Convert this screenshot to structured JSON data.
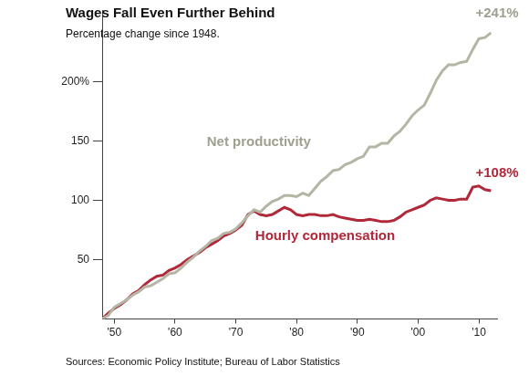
{
  "chart_data": {
    "type": "line",
    "title": "Wages Fall Even Further Behind",
    "subtitle": "Percentage change since 1948.",
    "source": "Sources: Economic Policy Institute; Bureau of Labor Statistics",
    "x": [
      1948,
      1949,
      1950,
      1951,
      1952,
      1953,
      1954,
      1955,
      1956,
      1957,
      1958,
      1959,
      1960,
      1961,
      1962,
      1963,
      1964,
      1965,
      1966,
      1967,
      1968,
      1969,
      1970,
      1971,
      1972,
      1973,
      1974,
      1975,
      1976,
      1977,
      1978,
      1979,
      1980,
      1981,
      1982,
      1983,
      1984,
      1985,
      1986,
      1987,
      1988,
      1989,
      1990,
      1991,
      1992,
      1993,
      1994,
      1995,
      1996,
      1997,
      1998,
      1999,
      2000,
      2001,
      2002,
      2003,
      2004,
      2005,
      2006,
      2007,
      2008,
      2009,
      2010,
      2011,
      2012
    ],
    "series": [
      {
        "name": "Net productivity",
        "color": "#b5b5a5",
        "values": [
          0,
          3,
          10,
          13,
          16,
          20,
          23,
          27,
          28,
          31,
          34,
          38,
          39,
          43,
          48,
          52,
          57,
          61,
          66,
          68,
          72,
          73,
          76,
          81,
          87,
          92,
          90,
          95,
          99,
          101,
          104,
          104,
          103,
          106,
          104,
          110,
          116,
          120,
          125,
          126,
          130,
          132,
          135,
          137,
          145,
          145,
          148,
          148,
          154,
          158,
          164,
          171,
          176,
          180,
          190,
          201,
          209,
          214,
          214,
          216,
          217,
          227,
          236,
          237,
          241
        ]
      },
      {
        "name": "Hourly compensation",
        "color": "#b0283a",
        "values": [
          0,
          5,
          9,
          12,
          16,
          21,
          24,
          29,
          33,
          36,
          37,
          41,
          43,
          46,
          50,
          53,
          56,
          60,
          63,
          66,
          70,
          72,
          75,
          79,
          88,
          91,
          88,
          87,
          88,
          91,
          94,
          92,
          88,
          87,
          88,
          88,
          87,
          87,
          88,
          86,
          85,
          84,
          83,
          83,
          84,
          83,
          82,
          82,
          83,
          86,
          90,
          92,
          94,
          96,
          100,
          102,
          101,
          100,
          100,
          101,
          101,
          111,
          112,
          109,
          108
        ]
      }
    ],
    "annotations": [
      {
        "text": "+241%",
        "x": 2013,
        "y": 257,
        "color": "#a0a090"
      },
      {
        "text": "Net productivity",
        "x": 1973.8,
        "y": 149,
        "color": "#a0a090"
      },
      {
        "text": "+108%",
        "x": 2013,
        "y": 123,
        "color": "#b0283a"
      },
      {
        "text": "Hourly compensation",
        "x": 1984.7,
        "y": 70,
        "color": "#b0283a"
      }
    ],
    "xlim": [
      1948,
      2013
    ],
    "xticks": [
      {
        "value": 1950,
        "label": "'50"
      },
      {
        "value": 1960,
        "label": "'60"
      },
      {
        "value": 1970,
        "label": "'70"
      },
      {
        "value": 1980,
        "label": "'80"
      },
      {
        "value": 1990,
        "label": "'90"
      },
      {
        "value": 2000,
        "label": "'00"
      },
      {
        "value": 2010,
        "label": "'10"
      }
    ],
    "ylim": [
      0,
      260
    ],
    "yticks": [
      50,
      100,
      150,
      {
        "value": 200,
        "label": "200%"
      }
    ],
    "grid": false
  }
}
